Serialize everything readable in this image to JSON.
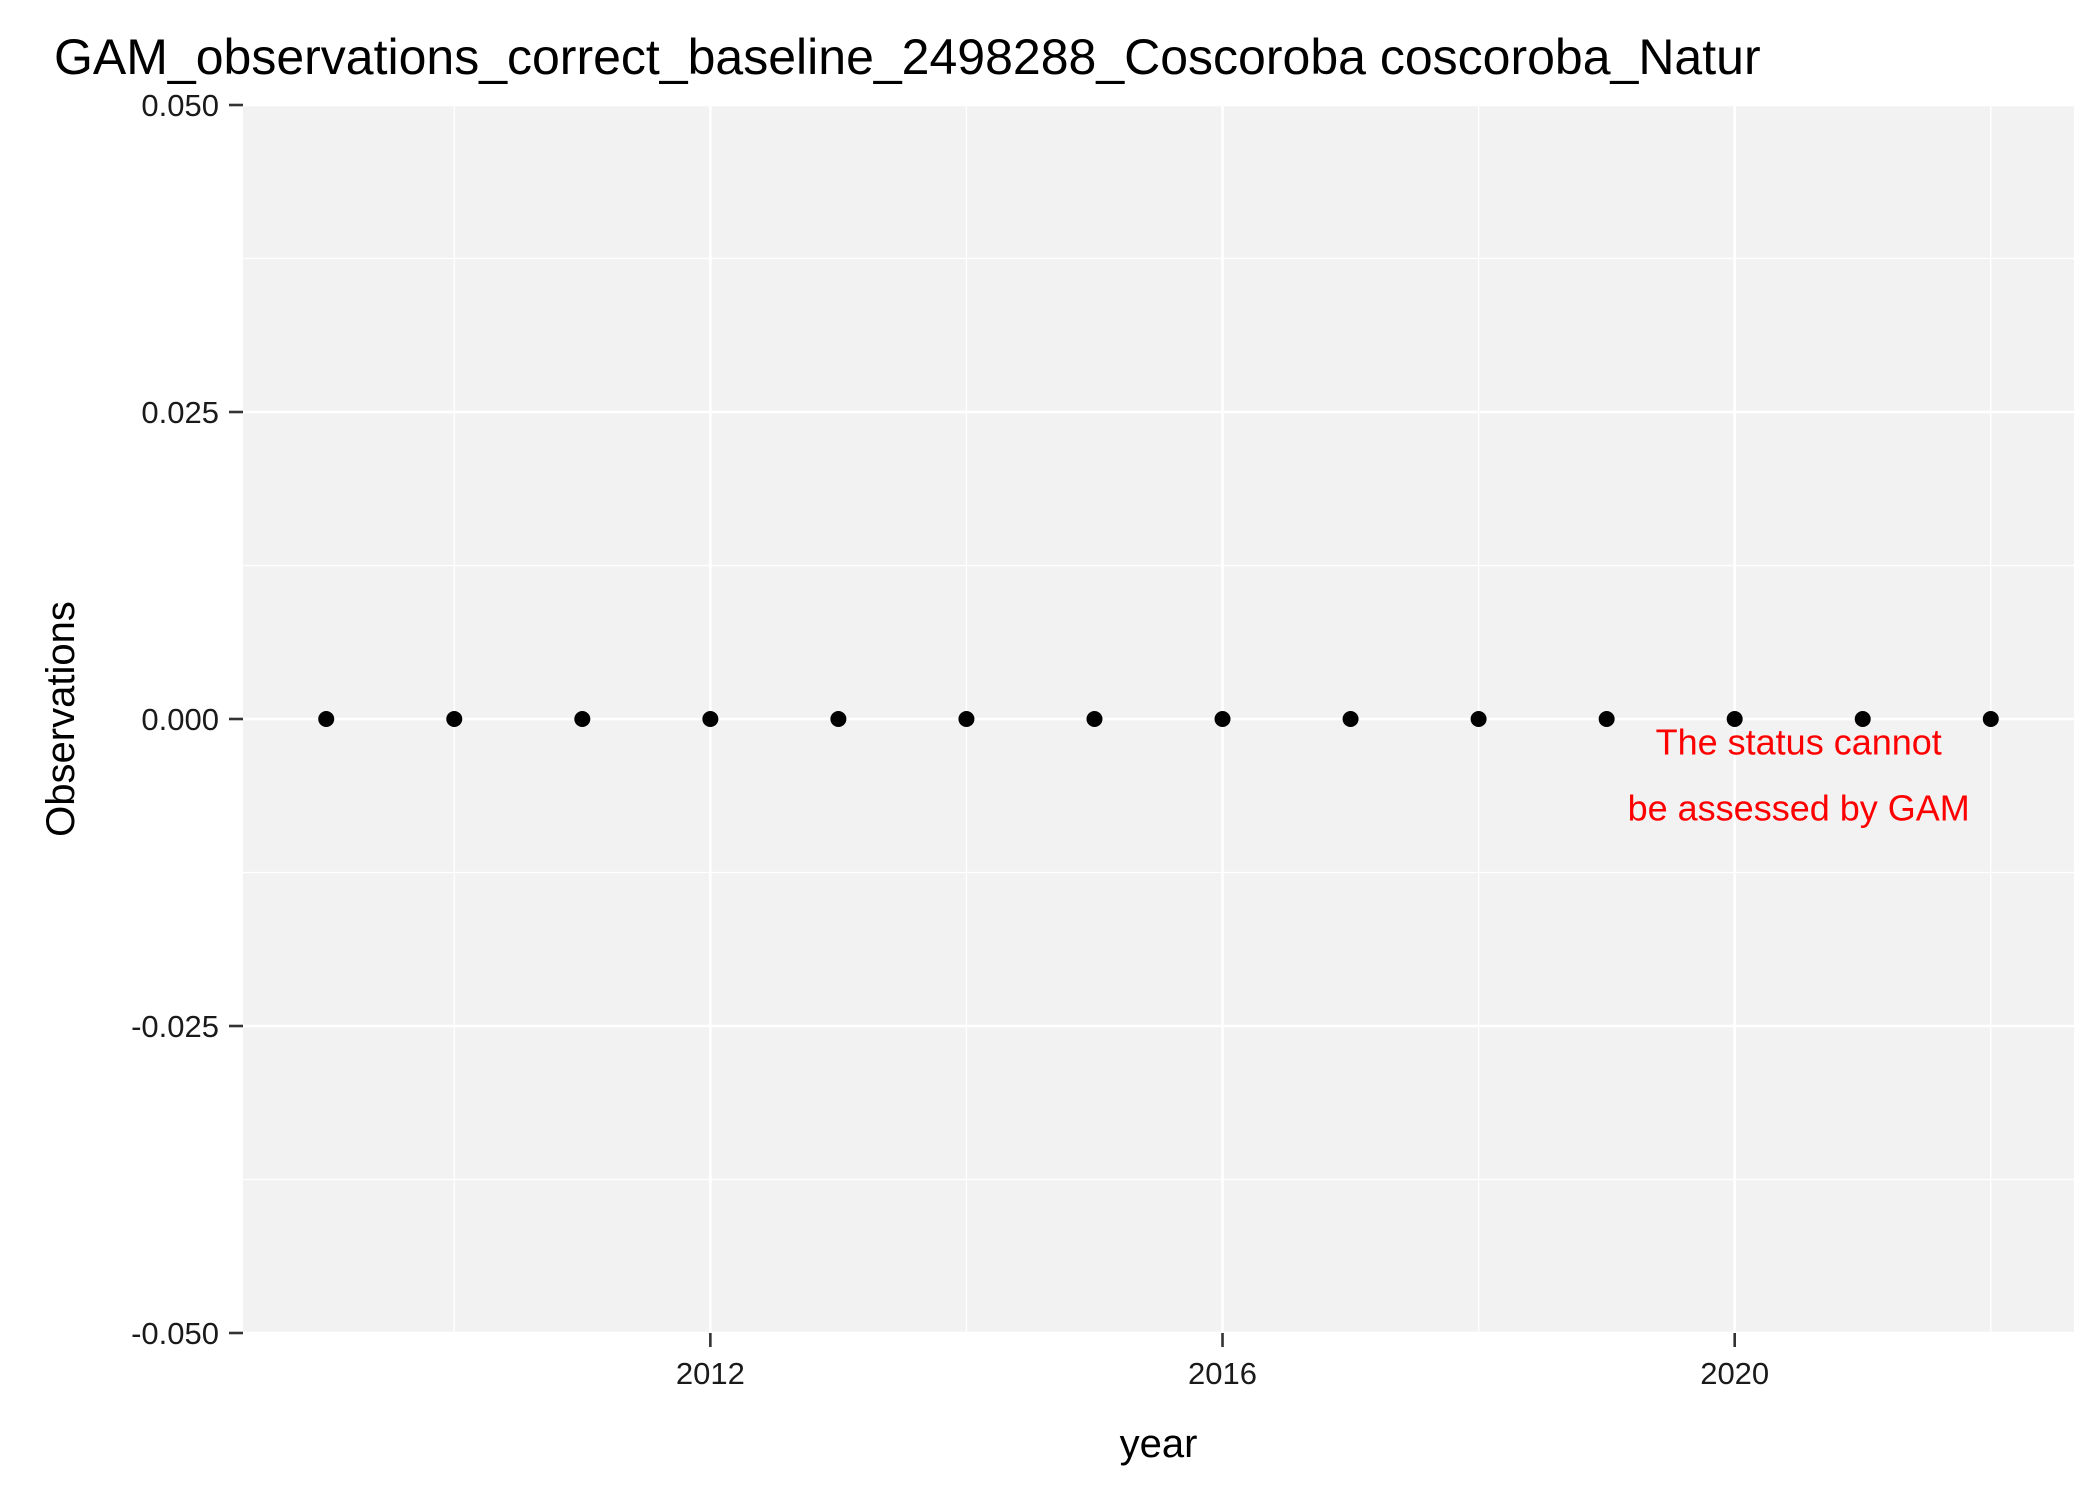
{
  "chart_data": {
    "type": "scatter",
    "title": "GAM_observations_correct_baseline_2498288_Coscoroba coscoroba_Natur",
    "xlabel": "year",
    "ylabel": "Observations",
    "xlim": [
      2008.35,
      2022.65
    ],
    "ylim": [
      -0.05,
      0.05
    ],
    "x_ticks": [
      2012,
      2016,
      2020
    ],
    "x_tick_labels": [
      "2012",
      "2016",
      "2020"
    ],
    "y_ticks": [
      -0.05,
      -0.025,
      0,
      0.025,
      0.05
    ],
    "y_tick_labels": [
      "-0.050",
      "-0.025",
      "0.000",
      "0.025",
      "0.050"
    ],
    "grid": true,
    "legend": "none",
    "colors": {
      "panel": "#f2f2f2",
      "grid": "#ffffff",
      "point": "#000000",
      "annotation": "#ff0000"
    },
    "series": [
      {
        "x": [
          2009,
          2010,
          2011,
          2012,
          2013,
          2014,
          2015,
          2016,
          2017,
          2018,
          2019,
          2020,
          2021,
          2022
        ],
        "y": [
          0,
          0,
          0,
          0,
          0,
          0,
          0,
          0,
          0,
          0,
          0,
          0,
          0,
          0
        ]
      }
    ],
    "annotation": {
      "lines": [
        "The status cannot",
        "be assessed by GAM"
      ],
      "x": 2020.5,
      "y": -0.0045
    }
  }
}
